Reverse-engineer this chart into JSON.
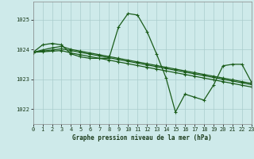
{
  "title": "Graphe pression niveau de la mer (hPa)",
  "background_color": "#ceeaea",
  "grid_color": "#aacccc",
  "line_color": "#1a5c1a",
  "xlim": [
    0,
    23
  ],
  "ylim": [
    1021.5,
    1025.6
  ],
  "yticks": [
    1022,
    1023,
    1024,
    1025
  ],
  "xticks": [
    0,
    1,
    2,
    3,
    4,
    5,
    6,
    7,
    8,
    9,
    10,
    11,
    12,
    13,
    14,
    15,
    16,
    17,
    18,
    19,
    20,
    21,
    22,
    23
  ],
  "series": [
    {
      "x": [
        0,
        1,
        2,
        3,
        4,
        5,
        6,
        7,
        8,
        9,
        10,
        11,
        12,
        13,
        14,
        15,
        16,
        17,
        18,
        19,
        20,
        21,
        22,
        23
      ],
      "y": [
        1023.9,
        1024.15,
        1024.2,
        1024.15,
        1023.85,
        1023.75,
        1023.7,
        1023.7,
        1023.7,
        1024.75,
        1025.2,
        1025.15,
        1024.6,
        1023.85,
        1023.05,
        1021.9,
        1022.5,
        1022.4,
        1022.3,
        1022.8,
        1023.45,
        1023.5,
        1023.5,
        1022.9
      ]
    },
    {
      "x": [
        0,
        1,
        2,
        3,
        4,
        5,
        6,
        7,
        8,
        9,
        10,
        11,
        12,
        13,
        14,
        15,
        16,
        17,
        18,
        19,
        20,
        21,
        22,
        23
      ],
      "y": [
        1023.9,
        1023.92,
        1023.94,
        1023.96,
        1023.88,
        1023.82,
        1023.76,
        1023.7,
        1023.64,
        1023.58,
        1023.52,
        1023.46,
        1023.4,
        1023.34,
        1023.28,
        1023.22,
        1023.16,
        1023.1,
        1023.04,
        1022.98,
        1022.92,
        1022.86,
        1022.8,
        1022.74
      ]
    },
    {
      "x": [
        0,
        1,
        2,
        3,
        4,
        5,
        6,
        7,
        8,
        9,
        10,
        11,
        12,
        13,
        14,
        15,
        16,
        17,
        18,
        19,
        20,
        21,
        22,
        23
      ],
      "y": [
        1023.9,
        1023.94,
        1023.98,
        1024.02,
        1023.96,
        1023.9,
        1023.84,
        1023.78,
        1023.72,
        1023.66,
        1023.6,
        1023.54,
        1023.48,
        1023.42,
        1023.36,
        1023.3,
        1023.24,
        1023.18,
        1023.12,
        1023.06,
        1023.0,
        1022.94,
        1022.88,
        1022.82
      ]
    },
    {
      "x": [
        0,
        1,
        2,
        3,
        4,
        5,
        6,
        7,
        8,
        9,
        10,
        11,
        12,
        13,
        14,
        15,
        16,
        17,
        18,
        19,
        20,
        21,
        22,
        23
      ],
      "y": [
        1023.9,
        1023.98,
        1024.05,
        1024.1,
        1024.0,
        1023.94,
        1023.88,
        1023.82,
        1023.76,
        1023.7,
        1023.64,
        1023.58,
        1023.52,
        1023.46,
        1023.4,
        1023.34,
        1023.28,
        1023.22,
        1023.16,
        1023.1,
        1023.04,
        1022.98,
        1022.92,
        1022.86
      ]
    }
  ]
}
